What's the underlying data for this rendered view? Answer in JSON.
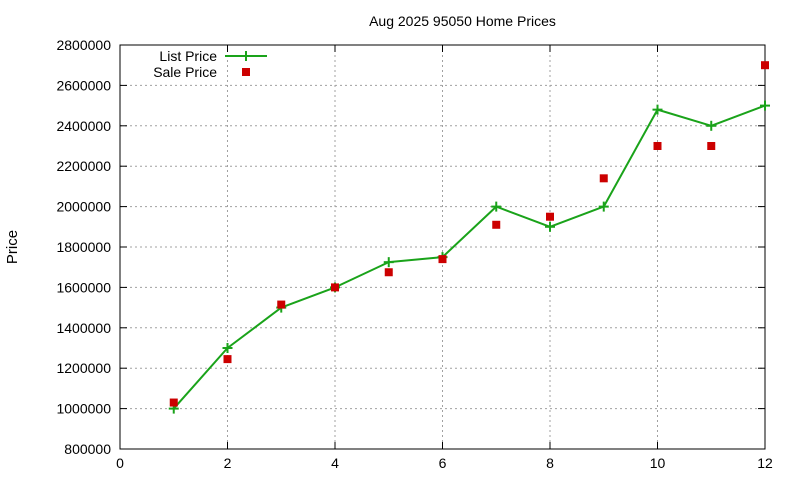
{
  "chart_data": {
    "type": "line",
    "title": "Aug 2025 95050 Home Prices",
    "xlabel": "",
    "ylabel": "Price",
    "xlim": [
      0,
      12
    ],
    "ylim": [
      800000,
      2800000
    ],
    "x_ticks": [
      "0",
      "2",
      "4",
      "6",
      "8",
      "10",
      "12"
    ],
    "y_ticks": [
      "800000",
      "1000000",
      "1200000",
      "1400000",
      "1600000",
      "1800000",
      "2000000",
      "2200000",
      "2400000",
      "2600000",
      "2800000"
    ],
    "grid": true,
    "legend_position": "top-left",
    "series": [
      {
        "name": "List Price",
        "style": "line+cross",
        "color": "#1aa31a",
        "x": [
          1,
          2,
          3,
          4,
          5,
          6,
          7,
          8,
          9,
          10,
          11,
          12
        ],
        "y": [
          1000000,
          1300000,
          1500000,
          1600000,
          1725000,
          1750000,
          2000000,
          1900000,
          2000000,
          2480000,
          2400000,
          2500000
        ]
      },
      {
        "name": "Sale Price",
        "style": "square-points",
        "color": "#cc0000",
        "x": [
          1,
          2,
          3,
          4,
          5,
          6,
          7,
          8,
          9,
          10,
          11,
          12
        ],
        "y": [
          1030000,
          1245000,
          1515000,
          1600000,
          1675000,
          1740000,
          1910000,
          1950000,
          2140000,
          2300000,
          2300000,
          2700000
        ]
      }
    ]
  }
}
